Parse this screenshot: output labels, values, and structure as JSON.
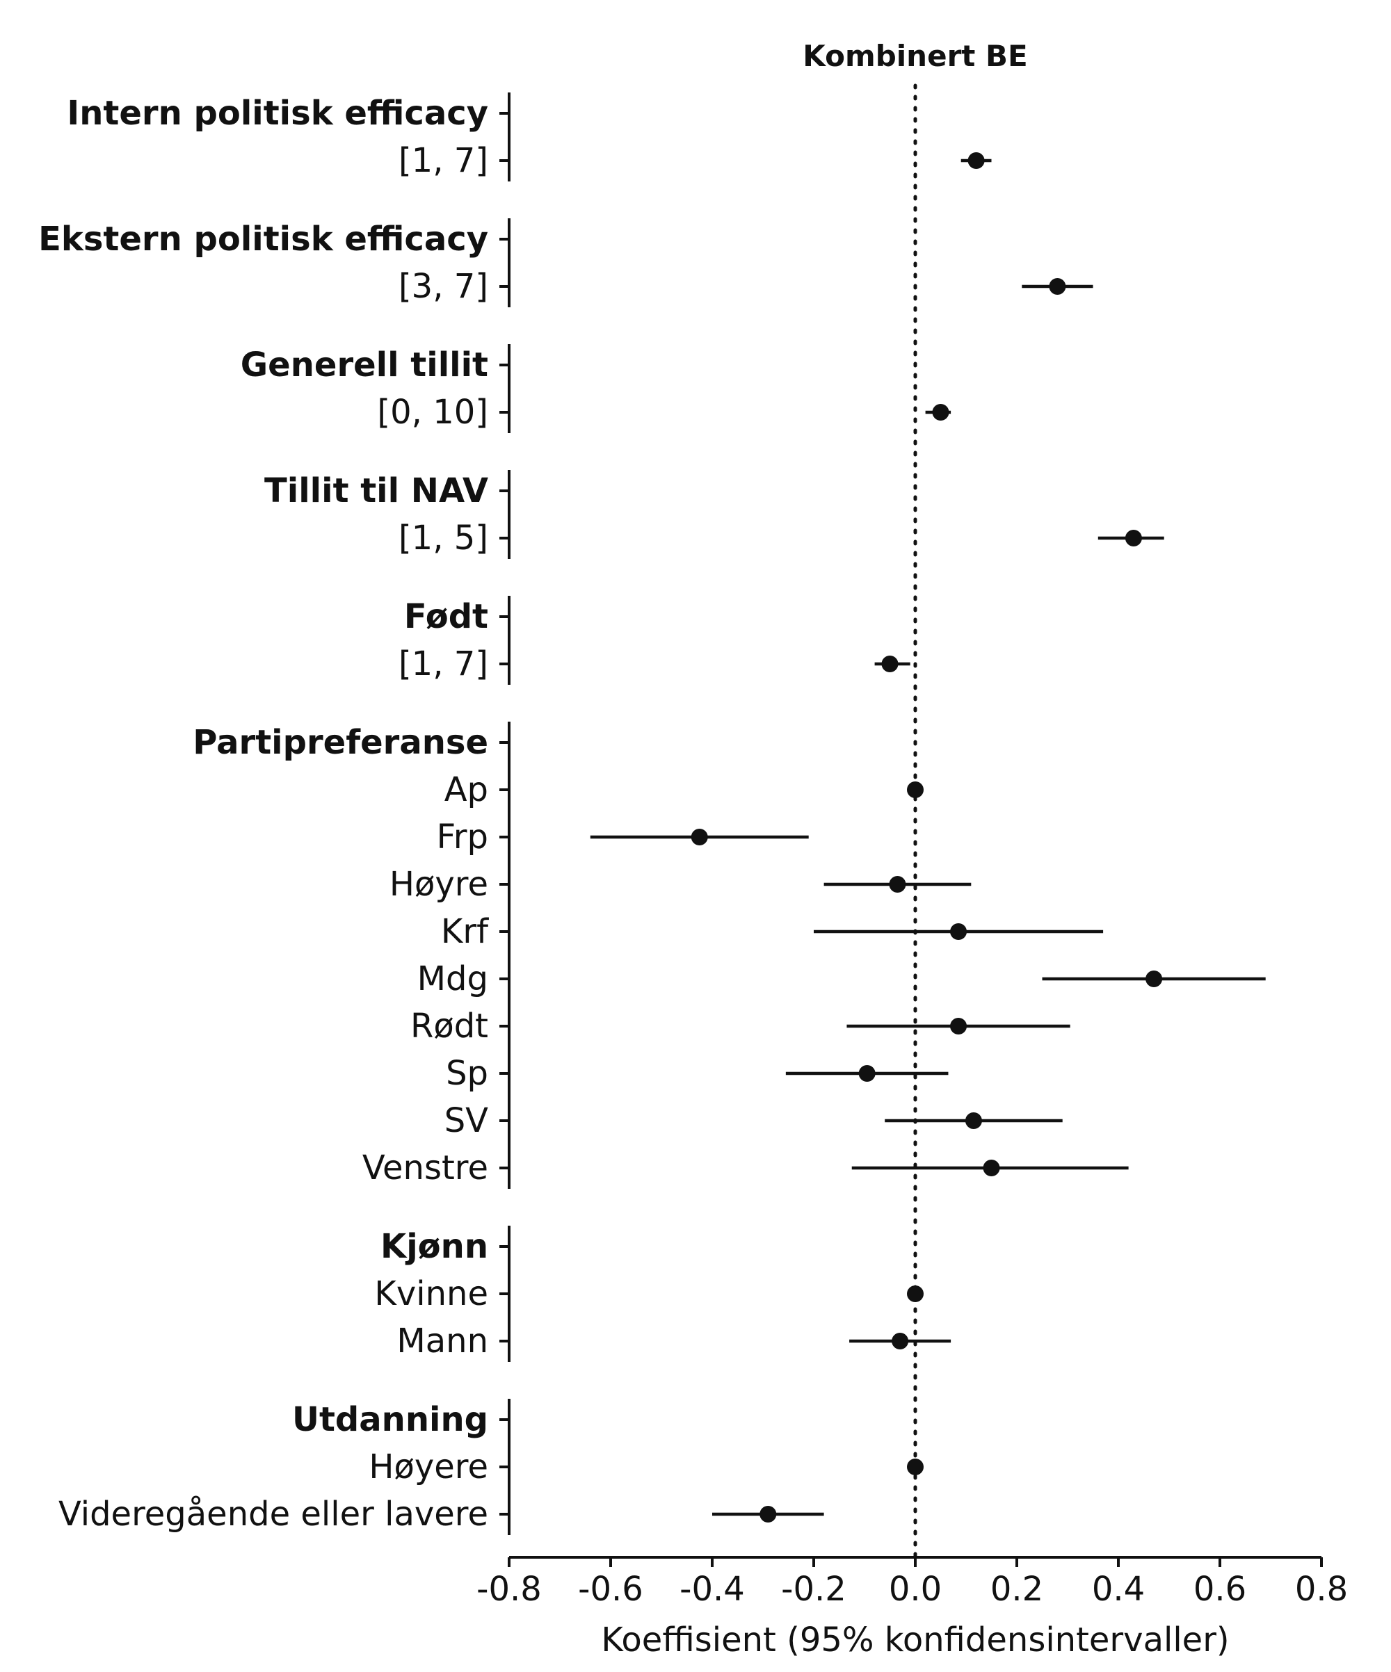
{
  "chart_data": {
    "type": "forest",
    "title": "Kombinert BE",
    "xlabel": "Koeffisient (95% konfidensintervaller)",
    "xlim": [
      -0.8,
      0.8
    ],
    "xticks": [
      -0.8,
      -0.6,
      -0.4,
      -0.2,
      0.0,
      0.2,
      0.4,
      0.6,
      0.8
    ],
    "xtick_labels": [
      "-0.8",
      "-0.6",
      "-0.4",
      "-0.2",
      "0.0",
      "0.2",
      "0.4",
      "0.6",
      "0.8"
    ],
    "reference_line": 0.0,
    "groups": [
      {
        "name": "Intern politisk efficacy",
        "rows": [
          {
            "label": "[1, 7]",
            "estimate": 0.12,
            "lower": 0.09,
            "upper": 0.15
          }
        ]
      },
      {
        "name": "Ekstern politisk efficacy",
        "rows": [
          {
            "label": "[3, 7]",
            "estimate": 0.28,
            "lower": 0.21,
            "upper": 0.35
          }
        ]
      },
      {
        "name": "Generell tillit",
        "rows": [
          {
            "label": "[0, 10]",
            "estimate": 0.05,
            "lower": 0.02,
            "upper": 0.07
          }
        ]
      },
      {
        "name": "Tillit til NAV",
        "rows": [
          {
            "label": "[1, 5]",
            "estimate": 0.43,
            "lower": 0.36,
            "upper": 0.49
          }
        ]
      },
      {
        "name": "Født",
        "rows": [
          {
            "label": "[1, 7]",
            "estimate": -0.05,
            "lower": -0.08,
            "upper": -0.01
          }
        ]
      },
      {
        "name": "Partipreferanse",
        "rows": [
          {
            "label": "Ap",
            "estimate": 0.0,
            "lower": 0.0,
            "upper": 0.0
          },
          {
            "label": "Frp",
            "estimate": -0.425,
            "lower": -0.64,
            "upper": -0.21
          },
          {
            "label": "Høyre",
            "estimate": -0.035,
            "lower": -0.18,
            "upper": 0.11
          },
          {
            "label": "Krf",
            "estimate": 0.085,
            "lower": -0.2,
            "upper": 0.37
          },
          {
            "label": "Mdg",
            "estimate": 0.47,
            "lower": 0.25,
            "upper": 0.69
          },
          {
            "label": "Rødt",
            "estimate": 0.085,
            "lower": -0.135,
            "upper": 0.305
          },
          {
            "label": "Sp",
            "estimate": -0.095,
            "lower": -0.255,
            "upper": 0.065
          },
          {
            "label": "SV",
            "estimate": 0.115,
            "lower": -0.06,
            "upper": 0.29
          },
          {
            "label": "Venstre",
            "estimate": 0.15,
            "lower": -0.125,
            "upper": 0.42
          }
        ]
      },
      {
        "name": "Kjønn",
        "rows": [
          {
            "label": "Kvinne",
            "estimate": 0.0,
            "lower": 0.0,
            "upper": 0.0
          },
          {
            "label": "Mann",
            "estimate": -0.03,
            "lower": -0.13,
            "upper": 0.07
          }
        ]
      },
      {
        "name": "Utdanning",
        "rows": [
          {
            "label": "Høyere",
            "estimate": 0.0,
            "lower": 0.0,
            "upper": 0.0
          },
          {
            "label": "Videregående eller lavere",
            "estimate": -0.29,
            "lower": -0.4,
            "upper": -0.18
          }
        ]
      }
    ],
    "colors": {
      "ink": "#111111",
      "background": "#ffffff"
    }
  }
}
